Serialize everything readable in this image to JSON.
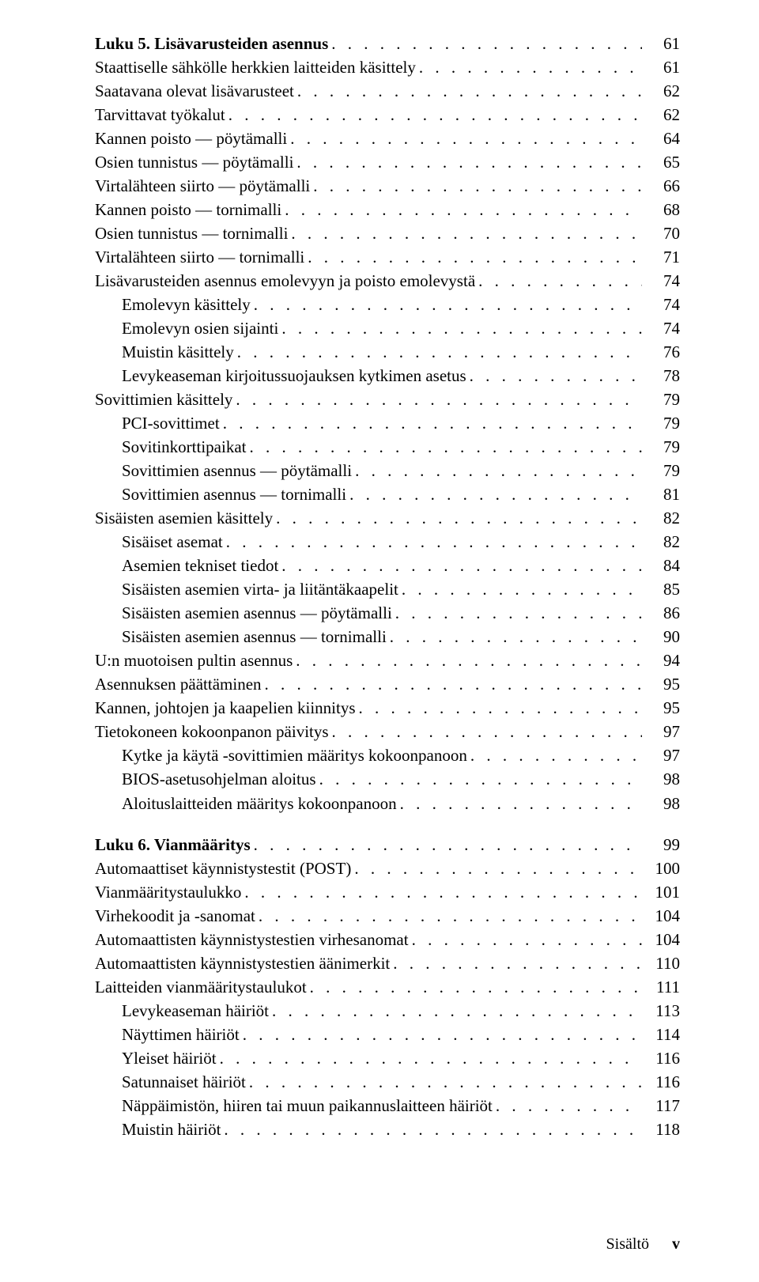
{
  "toc": [
    {
      "label": "Luku 5.  Lisävarusteiden asennus",
      "page": "61",
      "indent": 0,
      "boldLabel": true,
      "gapBefore": false
    },
    {
      "label": "Staattiselle sähkölle herkkien laitteiden käsittely",
      "page": "61",
      "indent": 0
    },
    {
      "label": "Saatavana olevat lisävarusteet",
      "page": "62",
      "indent": 0
    },
    {
      "label": "Tarvittavat työkalut",
      "page": "62",
      "indent": 0
    },
    {
      "label": "Kannen poisto — pöytämalli",
      "page": "64",
      "indent": 0
    },
    {
      "label": "Osien tunnistus — pöytämalli",
      "page": "65",
      "indent": 0
    },
    {
      "label": "Virtalähteen siirto — pöytämalli",
      "page": "66",
      "indent": 0
    },
    {
      "label": "Kannen poisto — tornimalli",
      "page": "68",
      "indent": 0
    },
    {
      "label": "Osien tunnistus — tornimalli",
      "page": "70",
      "indent": 0
    },
    {
      "label": "Virtalähteen siirto — tornimalli",
      "page": "71",
      "indent": 0
    },
    {
      "label": "Lisävarusteiden asennus emolevyyn ja poisto emolevystä",
      "page": "74",
      "indent": 0
    },
    {
      "label": "Emolevyn käsittely",
      "page": "74",
      "indent": 1
    },
    {
      "label": "Emolevyn osien sijainti",
      "page": "74",
      "indent": 1
    },
    {
      "label": "Muistin käsittely",
      "page": "76",
      "indent": 1
    },
    {
      "label": "Levykeaseman kirjoitussuojauksen kytkimen asetus",
      "page": "78",
      "indent": 1
    },
    {
      "label": "Sovittimien käsittely",
      "page": "79",
      "indent": 0
    },
    {
      "label": "PCI-sovittimet",
      "page": "79",
      "indent": 1
    },
    {
      "label": "Sovitinkorttipaikat",
      "page": "79",
      "indent": 1
    },
    {
      "label": "Sovittimien asennus — pöytämalli",
      "page": "79",
      "indent": 1
    },
    {
      "label": "Sovittimien asennus — tornimalli",
      "page": "81",
      "indent": 1
    },
    {
      "label": "Sisäisten asemien käsittely",
      "page": "82",
      "indent": 0
    },
    {
      "label": "Sisäiset asemat",
      "page": "82",
      "indent": 1
    },
    {
      "label": "Asemien tekniset tiedot",
      "page": "84",
      "indent": 1
    },
    {
      "label": "Sisäisten asemien virta- ja liitäntäkaapelit",
      "page": "85",
      "indent": 1
    },
    {
      "label": "Sisäisten asemien asennus — pöytämalli",
      "page": "86",
      "indent": 1
    },
    {
      "label": "Sisäisten asemien asennus — tornimalli",
      "page": "90",
      "indent": 1
    },
    {
      "label": "U:n muotoisen pultin asennus",
      "page": "94",
      "indent": 0
    },
    {
      "label": "Asennuksen päättäminen",
      "page": "95",
      "indent": 0
    },
    {
      "label": "Kannen, johtojen ja kaapelien kiinnitys",
      "page": "95",
      "indent": 0
    },
    {
      "label": "Tietokoneen kokoonpanon päivitys",
      "page": "97",
      "indent": 0
    },
    {
      "label": "Kytke ja käytä -sovittimien määritys kokoonpanoon",
      "page": "97",
      "indent": 1
    },
    {
      "label": "BIOS-asetusohjelman aloitus",
      "page": "98",
      "indent": 1
    },
    {
      "label": "Aloituslaitteiden määritys kokoonpanoon",
      "page": "98",
      "indent": 1
    },
    {
      "label": "Luku 6.  Vianmääritys",
      "page": "99",
      "indent": 0,
      "boldLabel": true,
      "gapBefore": true
    },
    {
      "label": "Automaattiset käynnistystestit (POST)",
      "page": "100",
      "indent": 0
    },
    {
      "label": "Vianmääritystaulukko",
      "page": "101",
      "indent": 0
    },
    {
      "label": "Virhekoodit ja -sanomat",
      "page": "104",
      "indent": 0
    },
    {
      "label": "Automaattisten käynnistystestien virhesanomat",
      "page": "104",
      "indent": 0
    },
    {
      "label": "Automaattisten käynnistystestien äänimerkit",
      "page": "110",
      "indent": 0
    },
    {
      "label": "Laitteiden vianmääritystaulukot",
      "page": "111",
      "indent": 0
    },
    {
      "label": "Levykeaseman häiriöt",
      "page": "113",
      "indent": 1
    },
    {
      "label": "Näyttimen häiriöt",
      "page": "114",
      "indent": 1
    },
    {
      "label": "Yleiset häiriöt",
      "page": "116",
      "indent": 1
    },
    {
      "label": "Satunnaiset häiriöt",
      "page": "116",
      "indent": 1
    },
    {
      "label": "Näppäimistön, hiiren tai muun paikannuslaitteen häiriöt",
      "page": "117",
      "indent": 1
    },
    {
      "label": "Muistin häiriöt",
      "page": "118",
      "indent": 1
    }
  ],
  "footer": {
    "label": "Sisältö",
    "pageNumber": "v"
  }
}
